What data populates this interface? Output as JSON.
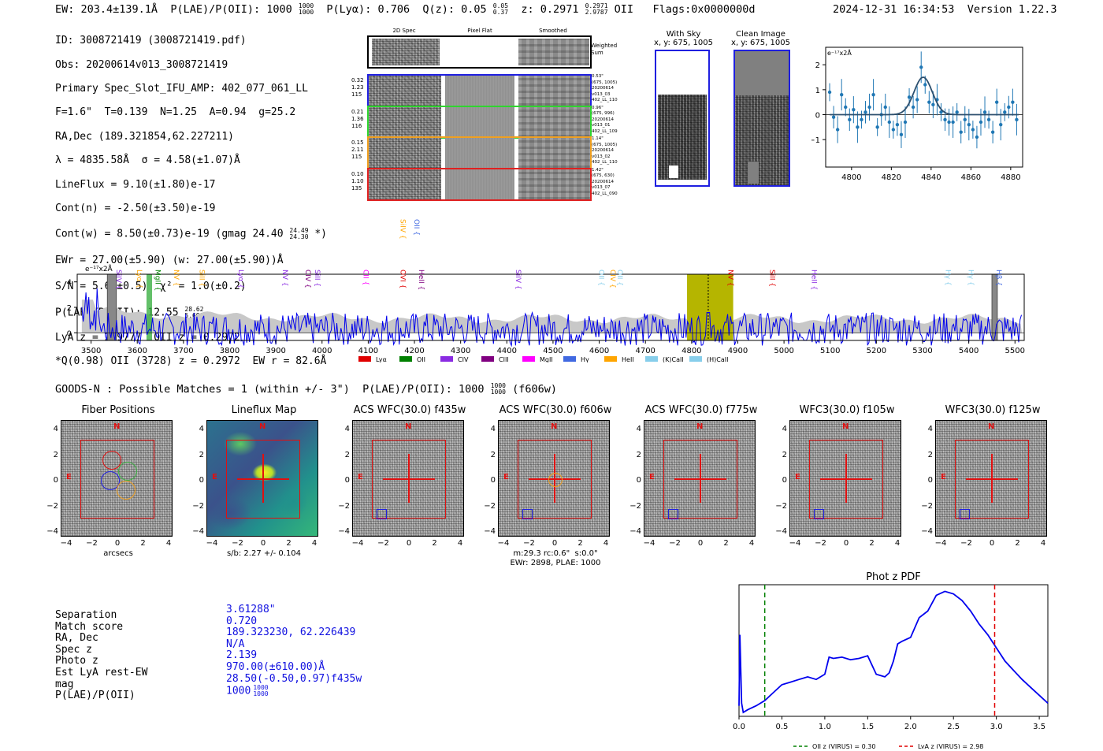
{
  "header": {
    "ew": "EW: 203.4±139.1Å",
    "plae_label": "P(LAE)/P(OII): 1000",
    "plae_hi": "1000",
    "plae_lo": "1000",
    "plya": "P(Lyα): 0.706",
    "qz_label": "Q(z): 0.05",
    "qz_hi": "0.05",
    "qz_lo": "0.37",
    "z_label": "z: 0.2971",
    "z_hi": "0.2971",
    "z_lo": "2.9787",
    "z_line": "OII",
    "flags": "Flags:0x0000000d",
    "timestamp": "2024-12-31 16:34:53",
    "version": "Version 1.22.3"
  },
  "info": {
    "line1": "ID: 3008721419 (3008721419.pdf)",
    "line2": "Obs: 20200614v013_3008721419",
    "line3": "Primary Spec_Slot_IFU_AMP: 402_077_061_LL",
    "line4": "F=1.6\"  T=0.139  N=1.25  A=0.94  g=25.2",
    "line5": "RA,Dec (189.321854,62.227211)",
    "line6": "λ = 4835.58Å  σ = 4.58(±1.07)Å",
    "line7": "LineFlux = 9.10(±1.80)e-17",
    "line8": "Cont(n) = -2.50(±3.50)e-19",
    "line9": "Cont(w) = 8.50(±0.73)e-19 (gmag 24.40",
    "line9_hi": "24.49",
    "line9_lo": "24.30",
    "line9_end": "*)",
    "line10": "EWr = 27.00(±5.90) (w: 27.00(±5.90))Å",
    "line11": "S/N = 5.6(±0.5)  χ² = 1.0(±0.2)",
    "line12": "P(LAE)/P(OII): 12.55",
    "line12_hi": "28.62",
    "line12_lo": "5.698",
    "line13": "LyA z = 2.9777  OII z = 0.2972",
    "line14": "*Q(0.98) OII (3728) z = 0.2972  EW r = 82.6Å"
  },
  "cutouts": {
    "col_2d": "2D Spec",
    "col_flat": "Pixel Flat",
    "col_smooth": "Smoothed",
    "weighted": "Weighted Sum",
    "rows": [
      {
        "left": "0.32\n1.23\n115",
        "right": "0.53\"\n(675, 1005)\n20200614\nv013_03\n402_LL_110",
        "color": "#1f1fe0"
      },
      {
        "left": "0.21\n1.36\n116",
        "right": "0.96\"\n(675, 996)\n20200614\nv013_01\n402_LL_109",
        "color": "#2fd52f"
      },
      {
        "left": "0.15\n2.11\n115",
        "right": "1.14\"\n(675, 1005)\n20200614\nv013_02\n402_LL_110",
        "color": "#f0a020"
      },
      {
        "left": "0.10\n1.10\n135",
        "right": "1.42\"\n(675, 630)\n20200614\nv013_07\n402_LL_090",
        "color": "#e02020"
      }
    ]
  },
  "with_sky": {
    "title": "With Sky",
    "sub": "x, y: 675, 1005"
  },
  "clean_image": {
    "title": "Clean Image",
    "sub": "x, y: 675, 1005"
  },
  "fit_plot": {
    "unit": "e⁻¹⁷x2Å"
  },
  "spectrum": {
    "unit": "e⁻¹⁷x2Å",
    "legend": [
      {
        "name": "Lyα",
        "color": "#e00000"
      },
      {
        "name": "OII",
        "color": "#008000"
      },
      {
        "name": "CIV",
        "color": "#8a2be2"
      },
      {
        "name": "CIII",
        "color": "#800080"
      },
      {
        "name": "MgII",
        "color": "#ff00ff"
      },
      {
        "name": "Hγ",
        "color": "#4169e1"
      },
      {
        "name": "HeII",
        "color": "#ffa500"
      },
      {
        "name": "(K)CaII",
        "color": "#87ceeb"
      },
      {
        "name": "(H)CaII",
        "color": "#87ceeb"
      }
    ],
    "lines_row1": [
      {
        "name": "SiIV",
        "w": 3555,
        "color": "#8a2be2"
      },
      {
        "name": "Lyα",
        "w": 3600,
        "color": "#ffa500"
      },
      {
        "name": "MgII",
        "w": 3640,
        "color": "#008000"
      },
      {
        "name": "NV",
        "w": 3680,
        "color": "#ffa500"
      },
      {
        "name": "SiII",
        "w": 3735,
        "color": "#ffa500"
      },
      {
        "name": "Lyα",
        "w": 3820,
        "color": "#8a2be2"
      },
      {
        "name": "NV",
        "w": 3915,
        "color": "#8a2be2"
      },
      {
        "name": "CIV",
        "w": 3965,
        "color": "#800080"
      },
      {
        "name": "SiII",
        "w": 3985,
        "color": "#8a2be2"
      },
      {
        "name": "CII",
        "w": 4090,
        "color": "#ff00ff"
      },
      {
        "name": "OVI",
        "w": 4170,
        "color": "#e00000"
      },
      {
        "name": "HeII",
        "w": 4210,
        "color": "#800080"
      },
      {
        "name": "SiIV",
        "w": 4420,
        "color": "#8a2be2"
      },
      {
        "name": "OII",
        "w": 4600,
        "color": "#87ceeb"
      },
      {
        "name": "CIV",
        "w": 4625,
        "color": "#ffa500"
      },
      {
        "name": "OII",
        "w": 4640,
        "color": "#87ceeb"
      },
      {
        "name": "NV",
        "w": 4880,
        "color": "#e00000"
      },
      {
        "name": "SiII",
        "w": 4970,
        "color": "#e00000"
      },
      {
        "name": "HeII",
        "w": 5060,
        "color": "#8a2be2"
      },
      {
        "name": "Hγ",
        "w": 5350,
        "color": "#87ceeb"
      },
      {
        "name": "Hγ",
        "w": 5400,
        "color": "#87ceeb"
      },
      {
        "name": "Hβ",
        "w": 5460,
        "color": "#4169e1"
      }
    ],
    "lines_row2": [
      {
        "name": "SiIV",
        "w": 4170,
        "color": "#ffa500"
      },
      {
        "name": "OII",
        "w": 4200,
        "color": "#4169e1"
      }
    ]
  },
  "goods": {
    "text": "GOODS-N : Possible Matches = 1 (within +/- 3\")  P(LAE)/P(OII): 1000",
    "hi": "1000",
    "lo": "1000",
    "filter": "(f606w)"
  },
  "stamps": [
    {
      "title": "Fiber Positions",
      "caption": "arcsecs"
    },
    {
      "title": "Lineflux Map",
      "caption": "s/b: 2.27 +/- 0.104"
    },
    {
      "title": "ACS WFC(30.0) f435w",
      "caption": ""
    },
    {
      "title": "ACS WFC(30.0) f606w",
      "caption": "m:29.3 rc:0.6\"  s:0.0\"\nEWr: 2898, PLAE: 1000"
    },
    {
      "title": "ACS WFC(30.0) f775w",
      "caption": ""
    },
    {
      "title": "WFC3(30.0) f105w",
      "caption": ""
    },
    {
      "title": "WFC3(30.0) f125w",
      "caption": ""
    }
  ],
  "stamp_compass": {
    "north": "N",
    "east": "E"
  },
  "stamp_ticks": [
    "4",
    "2",
    "0",
    "−2",
    "−4"
  ],
  "stamp_xticks": [
    "−4",
    "−2",
    "0",
    "2",
    "4"
  ],
  "match": {
    "labels": [
      "Separation",
      "Match score",
      "RA, Dec",
      "Spec z",
      "Photo z",
      "Est LyA rest-EW",
      "mag",
      "P(LAE)/P(OII)"
    ],
    "values": [
      "3.61288\"",
      "0.720",
      "189.323230, 62.226439",
      "N/A",
      "2.139",
      "970.00(±610.00)Å",
      "28.50(-0.50,0.97)f435w",
      "1000"
    ],
    "plae_hi": "1000",
    "plae_lo": "1000"
  },
  "chart_data": [
    {
      "type": "line",
      "title": "",
      "ylabel": "e⁻¹⁷x2Å",
      "xlim": [
        4787,
        4886
      ],
      "ylim": [
        -2.1,
        2.7
      ],
      "xticks": [
        4800,
        4820,
        4840,
        4860,
        4880
      ],
      "yticks": [
        -1,
        0,
        1,
        2
      ],
      "series": [
        {
          "name": "data",
          "x": [
            4789,
            4791,
            4793,
            4795,
            4797,
            4799,
            4801,
            4803,
            4805,
            4807,
            4809,
            4811,
            4813,
            4815,
            4817,
            4819,
            4821,
            4823,
            4825,
            4827,
            4829,
            4831,
            4833,
            4835,
            4837,
            4839,
            4841,
            4843,
            4845,
            4847,
            4849,
            4851,
            4853,
            4855,
            4857,
            4859,
            4861,
            4863,
            4865,
            4867,
            4869,
            4871,
            4873,
            4875,
            4877,
            4879,
            4881,
            4883
          ],
          "y": [
            0.9,
            -0.1,
            -0.6,
            0.8,
            0.3,
            -0.2,
            0.2,
            -0.5,
            -0.2,
            0.1,
            0.3,
            0.8,
            -0.5,
            0.0,
            0.3,
            -0.3,
            -0.6,
            -0.4,
            -0.8,
            -0.3,
            0.7,
            0.3,
            0.6,
            1.9,
            1.2,
            0.5,
            0.4,
            0.6,
            0.1,
            -0.2,
            -0.3,
            -0.3,
            0.1,
            -0.7,
            -0.2,
            -0.4,
            -0.6,
            -0.9,
            -0.3,
            0.1,
            -0.2,
            -0.7,
            0.5,
            -0.4,
            0.1,
            0.3,
            0.5,
            -0.2
          ],
          "err": 0.6
        },
        {
          "name": "fit",
          "center": 4836,
          "amp": 1.5,
          "sigma": 4.6,
          "offset": 0
        }
      ]
    },
    {
      "type": "line",
      "title": "",
      "ylabel": "e⁻¹⁷x2Å",
      "xlim": [
        3470,
        5520
      ],
      "ylim": [
        -0.6,
        4.6
      ],
      "xticks": [
        3500,
        3600,
        3700,
        3800,
        3900,
        4000,
        4100,
        4200,
        4300,
        4400,
        4500,
        4600,
        4700,
        4800,
        4900,
        5000,
        5100,
        5200,
        5300,
        5400,
        5500
      ],
      "yticks": [
        0,
        2,
        4
      ],
      "highlight": [
        4790,
        4890
      ],
      "center_line": 4836
    },
    {
      "type": "line",
      "title": "Phot z PDF",
      "xlim": [
        0,
        3.6
      ],
      "xticks": [
        0.0,
        0.5,
        1.0,
        1.5,
        2.0,
        2.5,
        3.0,
        3.5
      ],
      "series": [
        {
          "name": "pdf",
          "x": [
            0.0,
            0.01,
            0.03,
            0.05,
            0.1,
            0.2,
            0.3,
            0.4,
            0.5,
            0.6,
            0.7,
            0.8,
            0.9,
            1.0,
            1.05,
            1.1,
            1.2,
            1.3,
            1.4,
            1.5,
            1.6,
            1.7,
            1.75,
            1.8,
            1.85,
            1.9,
            2.0,
            2.1,
            2.2,
            2.3,
            2.4,
            2.5,
            2.6,
            2.7,
            2.8,
            2.9,
            3.0,
            3.1,
            3.2,
            3.3,
            3.4,
            3.5,
            3.6
          ],
          "y": [
            0.08,
            0.62,
            0.1,
            0.03,
            0.05,
            0.08,
            0.12,
            0.18,
            0.24,
            0.26,
            0.28,
            0.3,
            0.28,
            0.32,
            0.45,
            0.44,
            0.45,
            0.43,
            0.44,
            0.46,
            0.32,
            0.3,
            0.33,
            0.42,
            0.55,
            0.57,
            0.6,
            0.75,
            0.8,
            0.92,
            0.95,
            0.93,
            0.88,
            0.8,
            0.7,
            0.62,
            0.52,
            0.42,
            0.35,
            0.28,
            0.22,
            0.16,
            0.1
          ]
        }
      ],
      "markers": [
        {
          "label": "OII z (VIRUS) = 0.30",
          "x": 0.3,
          "color": "#008000"
        },
        {
          "label": "LyA z (VIRUS) = 2.98",
          "x": 2.98,
          "color": "#e00000"
        }
      ]
    }
  ]
}
